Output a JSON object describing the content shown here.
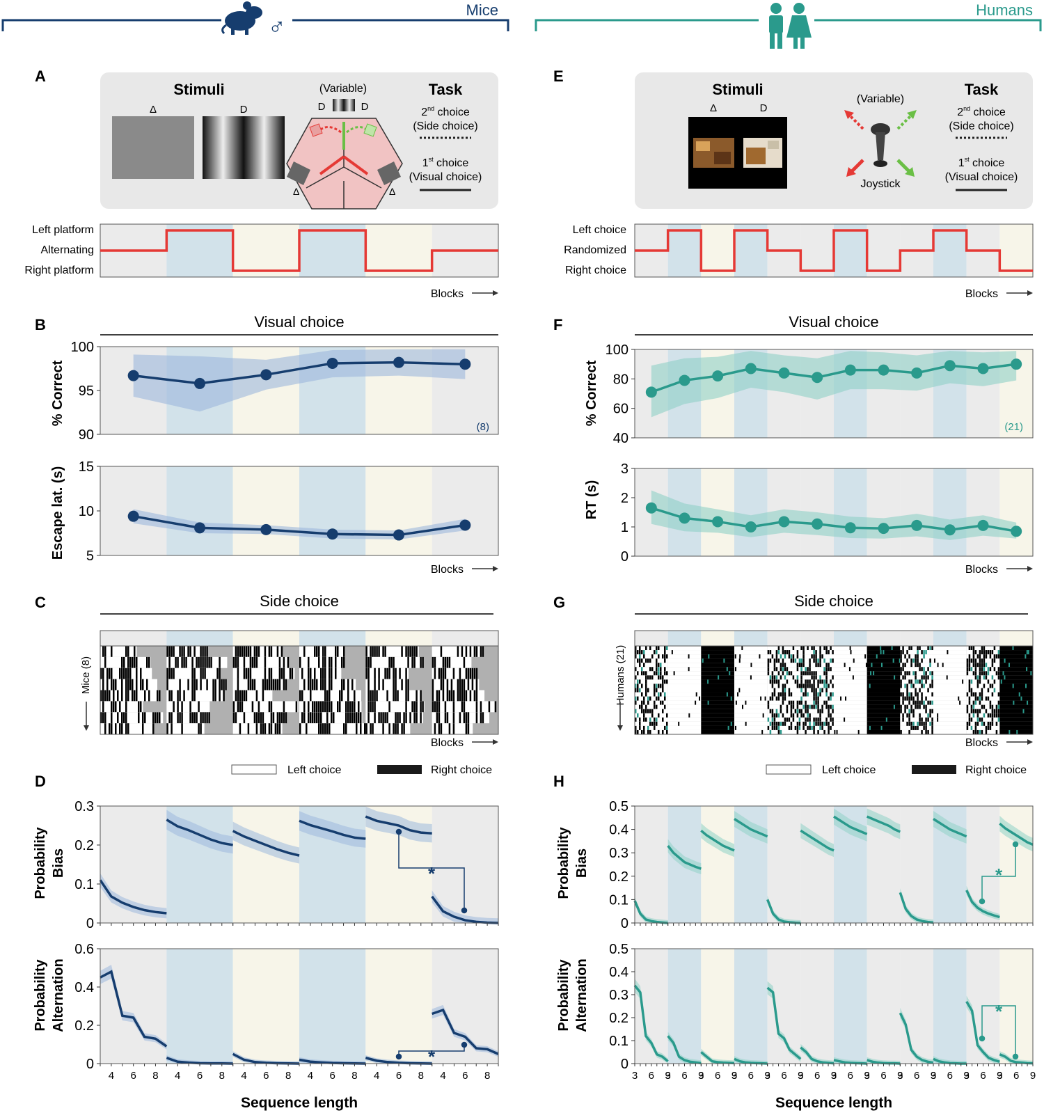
{
  "header": {
    "mice": "Mice",
    "humans": "Humans",
    "male_symbol": "♂"
  },
  "panels": {
    "A": "A",
    "B": "B",
    "C": "C",
    "D": "D",
    "E": "E",
    "F": "F",
    "G": "G",
    "H": "H"
  },
  "box_mice": {
    "stimuli_title": "Stimuli",
    "delta": "Δ",
    "d": "D",
    "variable": "(Variable)",
    "task_title": "Task",
    "second_pre": "2",
    "nd": "nd",
    "second_post": " choice",
    "side_choice": "(Side choice)",
    "first_pre": "1",
    "st": "st",
    "first_post": " choice",
    "visual_choice": "(Visual choice)"
  },
  "box_humans": {
    "stimuli_title": "Stimuli",
    "delta": "Δ",
    "d": "D",
    "variable": "(Variable)",
    "joystick": "Joystick",
    "task_title": "Task",
    "second_pre": "2",
    "nd": "nd",
    "second_post": " choice",
    "side_choice": "(Side choice)",
    "first_pre": "1",
    "st": "st",
    "first_post": " choice",
    "visual_choice": "(Visual choice)"
  },
  "schedule_mice": {
    "labels": [
      "Left platform",
      "Alternating",
      "Right platform"
    ],
    "levels": [
      0,
      1,
      -1,
      1,
      -1,
      0
    ],
    "blocks_label": "Blocks"
  },
  "schedule_humans": {
    "labels": [
      "Left choice",
      "Randomized",
      "Right choice"
    ],
    "levels": [
      0,
      1,
      -1,
      1,
      0,
      -1,
      1,
      -1,
      0,
      1,
      0,
      -1
    ],
    "blocks_label": "Blocks"
  },
  "common": {
    "visual_choice_title": "Visual choice",
    "side_choice_title": "Side choice",
    "blocks": "Blocks",
    "left_choice": "Left choice",
    "right_choice": "Right choice",
    "sequence_length": "Sequence length"
  },
  "panel_b": {
    "ylabel1": "% Correct",
    "ylabel2": "Escape lat. (s)",
    "n_label": "(8)"
  },
  "panel_f": {
    "ylabel1": "% Correct",
    "ylabel2": "RT (s)",
    "n_label": "(21)"
  },
  "panel_c": {
    "ylabel": "Mice (8)"
  },
  "panel_g": {
    "ylabel": "Humans (21)"
  },
  "panel_d": {
    "ylabel1a": "Probability",
    "ylabel1b": "Bias",
    "ylabel2a": "Probability",
    "ylabel2b": "Alternation",
    "star": "*"
  },
  "panel_h": {
    "ylabel1a": "Probability",
    "ylabel1b": "Bias",
    "ylabel2a": "Probability",
    "ylabel2b": "Alternation",
    "star": "*"
  },
  "colors": {
    "mice": "#163d6e",
    "mice_band": "#9db8dc",
    "humans": "#2a9a8c",
    "humans_band": "#8fd1c6",
    "red": "#e53935",
    "green": "#6abf45",
    "gray_bg": "#ebebeb",
    "blue_bg": "#d2e2ea",
    "yellow_bg": "#f7f5e9"
  },
  "chart_data": [
    {
      "id": "B_top",
      "type": "line",
      "title": "Visual choice",
      "xlabel": "Blocks",
      "ylabel": "% Correct",
      "ylim": [
        90,
        100
      ],
      "yticks": [
        90,
        95,
        100
      ],
      "x": [
        1,
        2,
        3,
        4,
        5,
        6
      ],
      "values": [
        96.7,
        95.8,
        96.8,
        98.1,
        98.2,
        98.0
      ],
      "lower": [
        94.3,
        92.6,
        95.1,
        96.5,
        96.7,
        96.3
      ],
      "upper": [
        99.1,
        98.9,
        98.5,
        99.6,
        99.7,
        99.7
      ]
    },
    {
      "id": "B_bottom",
      "type": "line",
      "xlabel": "Blocks",
      "ylabel": "Escape lat. (s)",
      "ylim": [
        5,
        15
      ],
      "yticks": [
        5,
        10,
        15
      ],
      "x": [
        1,
        2,
        3,
        4,
        5,
        6
      ],
      "values": [
        9.4,
        8.1,
        7.9,
        7.4,
        7.3,
        8.4
      ],
      "lower": [
        8.6,
        7.5,
        7.4,
        6.9,
        6.8,
        7.8
      ],
      "upper": [
        10.2,
        8.7,
        8.4,
        7.9,
        7.8,
        9.1
      ]
    },
    {
      "id": "F_top",
      "type": "line",
      "title": "Visual choice",
      "xlabel": "Blocks",
      "ylabel": "% Correct",
      "ylim": [
        40,
        100
      ],
      "yticks": [
        40,
        60,
        80,
        100
      ],
      "x": [
        1,
        2,
        3,
        4,
        5,
        6,
        7,
        8,
        9,
        10,
        11,
        12
      ],
      "values": [
        71,
        79,
        82,
        87,
        84,
        81,
        86,
        86,
        84,
        89,
        87,
        90
      ],
      "lower": [
        54,
        63,
        67,
        74,
        71,
        66,
        73,
        73,
        72,
        77,
        75,
        79
      ],
      "upper": [
        89,
        94,
        95,
        99,
        96,
        94,
        99,
        98,
        96,
        99,
        98,
        99
      ]
    },
    {
      "id": "F_bottom",
      "type": "line",
      "xlabel": "Blocks",
      "ylabel": "RT (s)",
      "ylim": [
        0,
        3
      ],
      "yticks": [
        0,
        1,
        2,
        3
      ],
      "x": [
        1,
        2,
        3,
        4,
        5,
        6,
        7,
        8,
        9,
        10,
        11,
        12
      ],
      "values": [
        1.65,
        1.3,
        1.18,
        1.0,
        1.18,
        1.1,
        0.97,
        0.95,
        1.05,
        0.9,
        1.05,
        0.85
      ],
      "lower": [
        1.1,
        0.85,
        0.8,
        0.65,
        0.8,
        0.72,
        0.62,
        0.6,
        0.68,
        0.55,
        0.7,
        0.6
      ],
      "upper": [
        2.25,
        1.8,
        1.6,
        1.4,
        1.6,
        1.5,
        1.35,
        1.3,
        1.45,
        1.25,
        1.4,
        1.15
      ]
    },
    {
      "id": "D_top",
      "type": "line",
      "xlabel": "Sequence length",
      "ylabel": "Probability Bias",
      "ylim": [
        0,
        0.3
      ],
      "yticks": [
        0,
        0.1,
        0.2,
        0.3
      ],
      "xticks": [
        4,
        6,
        8
      ],
      "x": [
        3,
        4,
        5,
        6,
        7,
        8,
        9
      ],
      "series": [
        {
          "name": "block1",
          "values": [
            0.11,
            0.068,
            0.052,
            0.041,
            0.033,
            0.028,
            0.025
          ]
        },
        {
          "name": "block2",
          "values": [
            0.265,
            0.248,
            0.238,
            0.226,
            0.214,
            0.205,
            0.2
          ]
        },
        {
          "name": "block3",
          "values": [
            0.236,
            0.222,
            0.211,
            0.2,
            0.189,
            0.18,
            0.173
          ]
        },
        {
          "name": "block4",
          "values": [
            0.262,
            0.251,
            0.243,
            0.235,
            0.226,
            0.219,
            0.216
          ]
        },
        {
          "name": "block5a",
          "values": [
            0.273,
            0.262,
            0.256,
            0.25,
            0.238,
            0.232,
            0.23
          ]
        },
        {
          "name": "block6",
          "values": [
            0.068,
            0.03,
            0.016,
            0.007,
            0.003,
            0.001,
            0.0
          ]
        }
      ]
    },
    {
      "id": "D_bottom",
      "type": "line",
      "xlabel": "Sequence length",
      "ylabel": "Probability Alternation",
      "ylim": [
        0,
        0.6
      ],
      "yticks": [
        0,
        0.2,
        0.4,
        0.6
      ],
      "xticks": [
        4,
        6,
        8
      ],
      "x": [
        3,
        4,
        5,
        6,
        7,
        8,
        9
      ],
      "series": [
        {
          "name": "block1",
          "values": [
            0.45,
            0.48,
            0.25,
            0.24,
            0.14,
            0.13,
            0.09
          ]
        },
        {
          "name": "block2",
          "values": [
            0.03,
            0.01,
            0.005,
            0.002,
            0.001,
            0.001,
            0.0
          ]
        },
        {
          "name": "block3",
          "values": [
            0.05,
            0.02,
            0.008,
            0.004,
            0.002,
            0.001,
            0.0
          ]
        },
        {
          "name": "block4",
          "values": [
            0.02,
            0.01,
            0.006,
            0.003,
            0.002,
            0.001,
            0.0
          ]
        },
        {
          "name": "block5",
          "values": [
            0.03,
            0.015,
            0.008,
            0.004,
            0.002,
            0.001,
            0.0
          ]
        },
        {
          "name": "block6",
          "values": [
            0.26,
            0.28,
            0.16,
            0.14,
            0.08,
            0.075,
            0.05
          ]
        }
      ]
    },
    {
      "id": "H_top",
      "type": "line",
      "xlabel": "Sequence length",
      "ylabel": "Probability Bias",
      "ylim": [
        0,
        0.5
      ],
      "yticks": [
        0,
        0.1,
        0.2,
        0.3,
        0.4,
        0.5
      ],
      "xticks": [
        3,
        6,
        9
      ],
      "x": [
        3,
        4,
        5,
        6,
        7,
        8,
        9
      ],
      "series": [
        {
          "name": "b1",
          "values": [
            0.095,
            0.04,
            0.015,
            0.008,
            0.004,
            0.002,
            0.0
          ]
        },
        {
          "name": "b2",
          "values": [
            0.33,
            0.3,
            0.28,
            0.26,
            0.25,
            0.24,
            0.232
          ]
        },
        {
          "name": "b3",
          "values": [
            0.395,
            0.375,
            0.36,
            0.345,
            0.33,
            0.32,
            0.31
          ]
        },
        {
          "name": "b4",
          "values": [
            0.445,
            0.43,
            0.415,
            0.4,
            0.39,
            0.38,
            0.37
          ]
        },
        {
          "name": "b5",
          "values": [
            0.1,
            0.04,
            0.015,
            0.006,
            0.003,
            0.001,
            0.0
          ]
        },
        {
          "name": "b6",
          "values": [
            0.395,
            0.38,
            0.365,
            0.35,
            0.335,
            0.32,
            0.31
          ]
        },
        {
          "name": "b7",
          "values": [
            0.455,
            0.44,
            0.425,
            0.41,
            0.4,
            0.39,
            0.38
          ]
        },
        {
          "name": "b8",
          "values": [
            0.455,
            0.445,
            0.435,
            0.425,
            0.415,
            0.4,
            0.39
          ]
        },
        {
          "name": "b9",
          "values": [
            0.13,
            0.06,
            0.03,
            0.015,
            0.008,
            0.004,
            0.002
          ]
        },
        {
          "name": "b10",
          "values": [
            0.445,
            0.43,
            0.415,
            0.4,
            0.39,
            0.38,
            0.37
          ]
        },
        {
          "name": "b11",
          "values": [
            0.14,
            0.09,
            0.065,
            0.05,
            0.04,
            0.032,
            0.025
          ]
        },
        {
          "name": "b12",
          "values": [
            0.425,
            0.405,
            0.39,
            0.375,
            0.36,
            0.345,
            0.335
          ]
        }
      ]
    },
    {
      "id": "H_bottom",
      "type": "line",
      "xlabel": "Sequence length",
      "ylabel": "Probability Alternation",
      "ylim": [
        0,
        0.5
      ],
      "yticks": [
        0,
        0.1,
        0.2,
        0.3,
        0.4,
        0.5
      ],
      "xticks": [
        3,
        6,
        9
      ],
      "x": [
        3,
        4,
        5,
        6,
        7,
        8,
        9
      ],
      "series": [
        {
          "name": "b1",
          "values": [
            0.34,
            0.31,
            0.12,
            0.09,
            0.04,
            0.03,
            0.01
          ]
        },
        {
          "name": "b2",
          "values": [
            0.12,
            0.09,
            0.03,
            0.015,
            0.008,
            0.005,
            0.002
          ]
        },
        {
          "name": "b3",
          "values": [
            0.05,
            0.03,
            0.01,
            0.006,
            0.004,
            0.003,
            0.002
          ]
        },
        {
          "name": "b4",
          "values": [
            0.02,
            0.01,
            0.005,
            0.003,
            0.002,
            0.001,
            0.0
          ]
        },
        {
          "name": "b5",
          "values": [
            0.33,
            0.31,
            0.13,
            0.11,
            0.06,
            0.04,
            0.02
          ]
        },
        {
          "name": "b6",
          "values": [
            0.07,
            0.05,
            0.02,
            0.01,
            0.005,
            0.003,
            0.001
          ]
        },
        {
          "name": "b7",
          "values": [
            0.015,
            0.01,
            0.005,
            0.003,
            0.002,
            0.001,
            0.0
          ]
        },
        {
          "name": "b8",
          "values": [
            0.015,
            0.008,
            0.004,
            0.002,
            0.001,
            0.001,
            0.0
          ]
        },
        {
          "name": "b9",
          "values": [
            0.22,
            0.17,
            0.06,
            0.03,
            0.015,
            0.008,
            0.004
          ]
        },
        {
          "name": "b10",
          "values": [
            0.02,
            0.01,
            0.005,
            0.002,
            0.001,
            0.0,
            0.0
          ]
        },
        {
          "name": "b11",
          "values": [
            0.27,
            0.23,
            0.08,
            0.05,
            0.025,
            0.015,
            0.008
          ]
        },
        {
          "name": "b12",
          "values": [
            0.04,
            0.03,
            0.012,
            0.006,
            0.004,
            0.002,
            0.001
          ]
        }
      ]
    }
  ]
}
